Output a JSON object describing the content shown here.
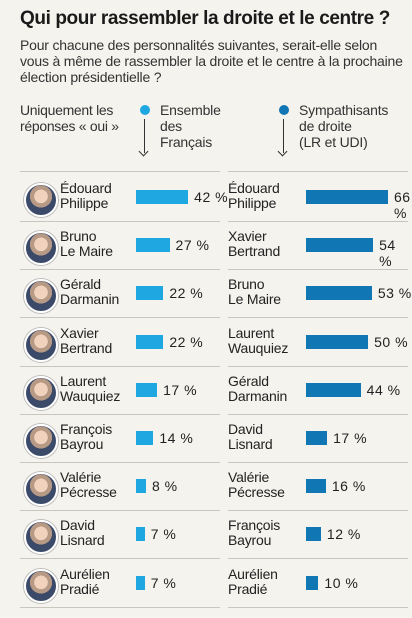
{
  "title": "Qui pour rassembler la droite et le centre ?",
  "subtitle": "Pour chacune des personnalités suivantes, serait-elle selon vous à même de rassembler la droite et le centre à la prochaine élection présidentielle ?",
  "note": "Uniquement les réponses « oui »",
  "colors": {
    "ensemble": "#1ea7e1",
    "sympathisants": "#1076b4"
  },
  "chart_data": [
    {
      "type": "bar",
      "title": "Ensemble des Français",
      "categories": [
        "Édouard Philippe",
        "Bruno Le Maire",
        "Gérald Darmanin",
        "Xavier Bertrand",
        "Laurent Wauquiez",
        "François Bayrou",
        "Valérie Pécresse",
        "David Lisnard",
        "Aurélien Pradié"
      ],
      "labels": [
        "Édouard\nPhilippe",
        "Bruno\nLe Maire",
        "Gérald\nDarmanin",
        "Xavier\nBertrand",
        "Laurent\nWauquiez",
        "François\nBayrou",
        "Valérie\nPécresse",
        "David\nLisnard",
        "Aurélien\nPradié"
      ],
      "values": [
        42,
        27,
        22,
        22,
        17,
        14,
        8,
        7,
        7
      ],
      "value_labels": [
        "42 %",
        "27 %",
        "22 %",
        "22 %",
        "17 %",
        "14 %",
        "8 %",
        "7 %",
        "7 %"
      ],
      "unit": "%"
    },
    {
      "type": "bar",
      "title": "Sympathisants de droite (LR et UDI)",
      "categories": [
        "Édouard Philippe",
        "Xavier Bertrand",
        "Bruno Le Maire",
        "Laurent Wauquiez",
        "Gérald Darmanin",
        "David Lisnard",
        "Valérie Pécresse",
        "François Bayrou",
        "Aurélien Pradié"
      ],
      "labels": [
        "Édouard\nPhilippe",
        "Xavier\nBertrand",
        "Bruno\nLe Maire",
        "Laurent\nWauquiez",
        "Gérald\nDarmanin",
        "David\nLisnard",
        "Valérie\nPécresse",
        "François\nBayrou",
        "Aurélien\nPradié"
      ],
      "values": [
        66,
        54,
        53,
        50,
        44,
        17,
        16,
        12,
        10
      ],
      "value_labels": [
        "66 %",
        "54 %",
        "53 %",
        "50 %",
        "44 %",
        "17 %",
        "16 %",
        "12 %",
        "10 %"
      ],
      "unit": "%"
    }
  ],
  "column_heads": {
    "ensemble": "Ensemble\ndes\nFrançais",
    "sympathisants": "Sympathisants\nde droite\n(LR et UDI)"
  }
}
